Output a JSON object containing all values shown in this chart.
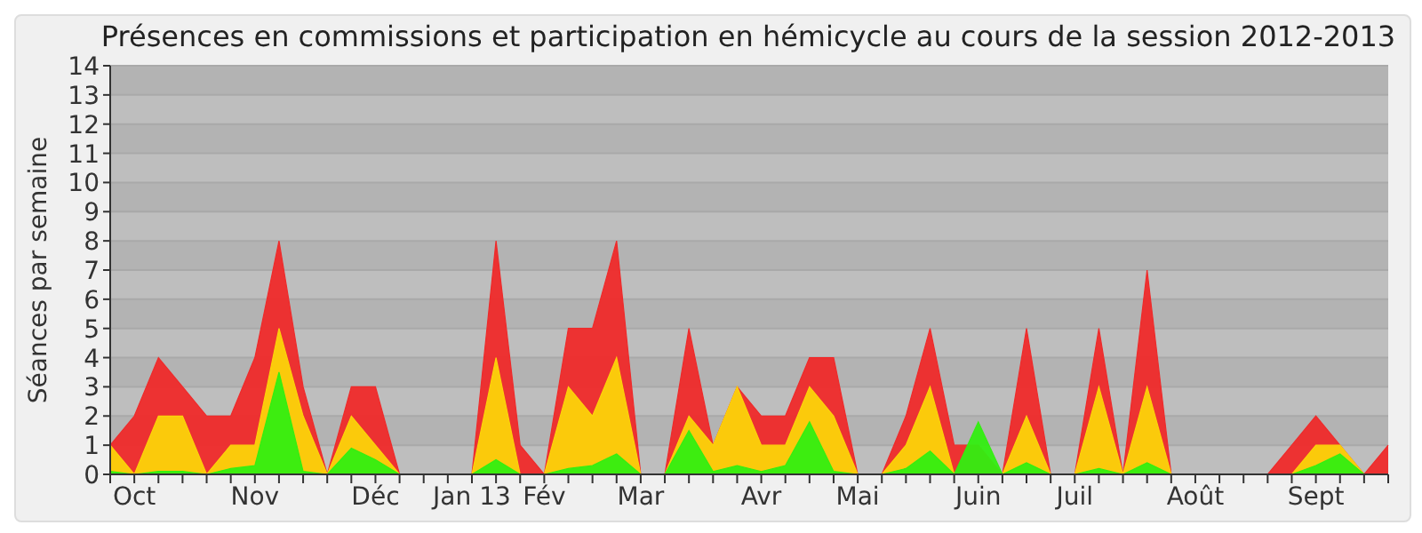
{
  "chart_data": {
    "type": "area",
    "title": "Présences en commissions et participation en hémicycle au cours de la session 2012-2013",
    "ylabel": "Séances par semaine",
    "categories": [
      null,
      "Oct",
      null,
      null,
      null,
      null,
      "Nov",
      null,
      null,
      null,
      null,
      "Déc",
      null,
      null,
      null,
      "Jan 13",
      null,
      null,
      "Fév",
      null,
      null,
      null,
      "Mar",
      null,
      null,
      null,
      null,
      "Avr",
      null,
      null,
      null,
      "Mai",
      null,
      null,
      null,
      null,
      "Juin",
      null,
      null,
      null,
      "Juil",
      null,
      null,
      null,
      null,
      "Août",
      null,
      null,
      null,
      null,
      "Sept",
      null,
      null,
      null
    ],
    "series": [
      {
        "color": "#ef2a2a",
        "values": [
          1,
          2,
          4,
          3,
          2,
          2,
          4,
          8,
          3,
          0,
          3,
          3,
          0,
          0,
          0,
          0,
          8,
          1,
          0,
          5,
          5,
          8,
          0,
          0,
          5,
          1,
          3,
          2,
          2,
          4,
          4,
          0,
          0,
          2,
          5,
          1,
          1,
          0,
          5,
          0,
          0,
          5,
          0,
          7,
          0,
          0,
          0,
          0,
          0,
          1,
          2,
          1,
          0,
          1
        ]
      },
      {
        "color": "#fcd30a",
        "values": [
          1,
          0,
          2,
          2,
          0,
          1,
          1,
          5,
          2,
          0,
          2,
          1,
          0,
          0,
          0,
          0,
          4,
          0,
          0,
          3,
          2,
          4,
          0,
          0,
          2,
          1,
          3,
          1,
          1,
          3,
          2,
          0,
          0,
          1,
          3,
          0,
          0,
          0,
          2,
          0,
          0,
          3,
          0,
          3,
          0,
          0,
          0,
          0,
          0,
          0,
          1,
          1,
          0,
          0
        ]
      },
      {
        "color": "#33ee11",
        "values": [
          0.1,
          0,
          0.1,
          0.1,
          0,
          0.2,
          0.3,
          3.5,
          0.1,
          0,
          0.9,
          0.5,
          0,
          0,
          0,
          0,
          0.5,
          0,
          0,
          0.2,
          0.3,
          0.7,
          0,
          0,
          1.5,
          0.1,
          0.3,
          0.1,
          0.3,
          1.8,
          0.1,
          0,
          0,
          0.2,
          0.8,
          0,
          1.8,
          0,
          0.4,
          0,
          0,
          0.2,
          0,
          0.4,
          0,
          0,
          0,
          0,
          0,
          0,
          0.3,
          0.7,
          0,
          0
        ]
      }
    ],
    "ylim": [
      0,
      14
    ],
    "yticks": [
      0,
      1,
      2,
      3,
      4,
      5,
      6,
      7,
      8,
      9,
      10,
      11,
      12,
      13,
      14
    ],
    "grid": "y"
  }
}
